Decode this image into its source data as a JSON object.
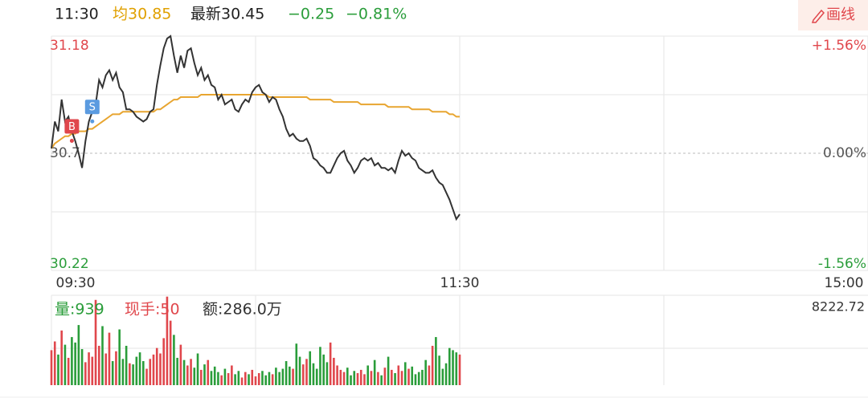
{
  "header": {
    "time": "11:30",
    "avg": "均30.85",
    "latest": "最新30.45",
    "change": "−0.25",
    "change_pct": "−0.81%",
    "draw_button": "画线"
  },
  "chart_data": [
    {
      "type": "line",
      "prev_close": 30.7,
      "xlim": [
        0,
        240
      ],
      "xticks": [
        {
          "value": 0,
          "label": "09:30"
        },
        {
          "value": 120,
          "label": "11:30"
        },
        {
          "value": 240,
          "label": "15:00"
        }
      ],
      "ylim": [
        30.22,
        31.18
      ],
      "yticks": [
        30.22,
        30.7,
        31.18
      ],
      "minor_yticks": [
        30.46,
        30.94
      ],
      "y2lim": [
        -1.56,
        1.56
      ],
      "y2ticks": [
        {
          "value": -1.56,
          "label": "-1.56%"
        },
        {
          "value": 0,
          "label": "0.00%"
        },
        {
          "value": 1.56,
          "label": "+1.56%"
        }
      ],
      "up_color": "#e0474c",
      "down_color": "#2a9d3a",
      "series": [
        {
          "name": "price",
          "color": "#333333",
          "values": [
            30.72,
            30.83,
            30.79,
            30.92,
            30.83,
            30.85,
            30.79,
            30.75,
            30.7,
            30.64,
            30.75,
            30.83,
            30.87,
            30.9,
            31.0,
            30.97,
            31.02,
            31.04,
            31.0,
            31.03,
            30.97,
            30.95,
            30.88,
            30.88,
            30.87,
            30.85,
            30.84,
            30.83,
            30.84,
            30.87,
            30.88,
            30.98,
            31.06,
            31.13,
            31.17,
            31.18,
            31.1,
            31.03,
            31.1,
            31.05,
            31.12,
            31.13,
            31.07,
            31.02,
            31.05,
            31.0,
            31.02,
            30.98,
            30.97,
            30.92,
            30.94,
            30.9,
            30.91,
            30.92,
            30.88,
            30.87,
            30.9,
            30.92,
            30.91,
            30.95,
            30.97,
            30.98,
            30.95,
            30.94,
            30.91,
            30.93,
            30.92,
            30.88,
            30.85,
            30.8,
            30.77,
            30.78,
            30.76,
            30.75,
            30.75,
            30.76,
            30.73,
            30.68,
            30.67,
            30.65,
            30.64,
            30.62,
            30.62,
            30.65,
            30.68,
            30.7,
            30.71,
            30.67,
            30.65,
            30.62,
            30.64,
            30.67,
            30.68,
            30.67,
            30.68,
            30.65,
            30.66,
            30.64,
            30.64,
            30.63,
            30.64,
            30.62,
            30.67,
            30.71,
            30.69,
            30.7,
            30.68,
            30.67,
            30.64,
            30.63,
            30.62,
            30.62,
            30.63,
            30.6,
            30.58,
            30.57,
            30.54,
            30.51,
            30.47,
            30.43,
            30.45
          ]
        },
        {
          "name": "average",
          "color": "#e8a530",
          "values": [
            30.72,
            30.74,
            30.75,
            30.76,
            30.77,
            30.77,
            30.78,
            30.78,
            30.79,
            30.79,
            30.79,
            30.8,
            30.8,
            30.81,
            30.82,
            30.83,
            30.84,
            30.85,
            30.86,
            30.86,
            30.86,
            30.87,
            30.87,
            30.87,
            30.87,
            30.87,
            30.87,
            30.87,
            30.87,
            30.87,
            30.87,
            30.88,
            30.88,
            30.89,
            30.9,
            30.91,
            30.92,
            30.92,
            30.93,
            30.93,
            30.93,
            30.93,
            30.93,
            30.93,
            30.94,
            30.94,
            30.94,
            30.94,
            30.94,
            30.94,
            30.94,
            30.94,
            30.94,
            30.94,
            30.94,
            30.94,
            30.94,
            30.94,
            30.94,
            30.94,
            30.94,
            30.94,
            30.94,
            30.94,
            30.93,
            30.93,
            30.93,
            30.93,
            30.93,
            30.93,
            30.93,
            30.93,
            30.93,
            30.93,
            30.93,
            30.93,
            30.92,
            30.92,
            30.92,
            30.92,
            30.92,
            30.92,
            30.92,
            30.91,
            30.91,
            30.91,
            30.91,
            30.91,
            30.91,
            30.91,
            30.91,
            30.9,
            30.9,
            30.9,
            30.9,
            30.9,
            30.9,
            30.9,
            30.9,
            30.89,
            30.89,
            30.89,
            30.89,
            30.89,
            30.89,
            30.89,
            30.88,
            30.88,
            30.88,
            30.88,
            30.88,
            30.88,
            30.87,
            30.87,
            30.87,
            30.87,
            30.87,
            30.86,
            30.86,
            30.85,
            30.85
          ]
        }
      ],
      "markers": [
        {
          "label": "B",
          "x": 6,
          "y": 30.81,
          "color": "#e0474c"
        },
        {
          "label": "S",
          "x": 12,
          "y": 30.89,
          "color": "#5b9be0"
        }
      ]
    },
    {
      "type": "volume",
      "volume_label": "量:939",
      "hand_label": "现手:50",
      "amount_label": "额:286.0万",
      "ylim": [
        0,
        8222.72
      ],
      "values": [
        3200,
        4000,
        2800,
        5000,
        3700,
        2500,
        4400,
        3900,
        5500,
        3300,
        2100,
        3000,
        2600,
        7800,
        3600,
        5400,
        2900,
        4800,
        2200,
        3100,
        5100,
        2400,
        3600,
        2000,
        1900,
        2600,
        3000,
        2200,
        1500,
        2400,
        2800,
        3400,
        2900,
        4300,
        8100,
        5900,
        4600,
        2500,
        3700,
        2300,
        1800,
        2400,
        1600,
        2900,
        1400,
        1900,
        2300,
        1300,
        1700,
        1200,
        900,
        1500,
        1100,
        1800,
        1000,
        1300,
        700,
        1200,
        1000,
        1400,
        800,
        1100,
        1300,
        900,
        1200,
        1000,
        1600,
        1200,
        1500,
        2200,
        1700,
        1500,
        3800,
        2600,
        1900,
        2400,
        3100,
        2000,
        1500,
        3500,
        2800,
        2100,
        3900,
        2500,
        1800,
        1400,
        1200,
        1600,
        900,
        1300,
        1100,
        1400,
        1000,
        1800,
        1300,
        2300,
        1200,
        900,
        1600,
        2600,
        1400,
        1100,
        1800,
        1300,
        2100,
        1500,
        1700,
        1000,
        1200,
        1400,
        2300,
        1800,
        3600,
        4400,
        2700,
        1500,
        2000,
        3400,
        3200,
        3000,
        2800
      ]
    }
  ]
}
